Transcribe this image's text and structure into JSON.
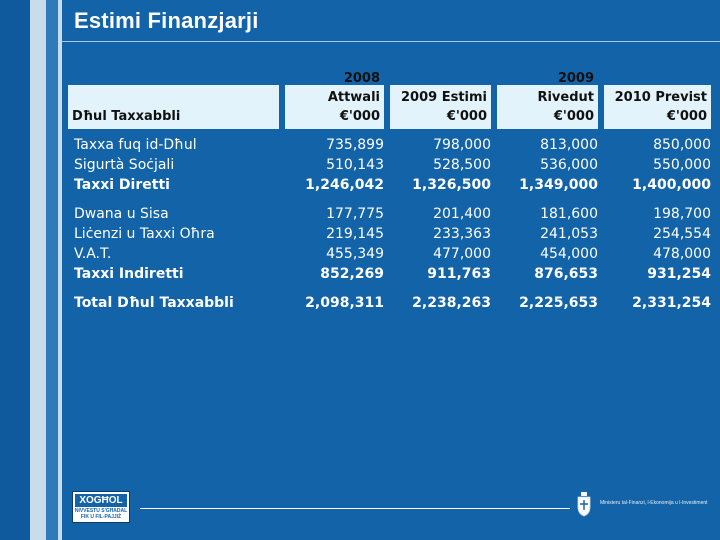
{
  "title": "Estimi Finanzjarji",
  "table": {
    "first_header": "Dħul Taxxabbli",
    "columns": [
      {
        "line1": "2008 Attwali",
        "line2": "€'000"
      },
      {
        "line1": "2009 Estimi",
        "line2": "€'000"
      },
      {
        "line1": "2009 Rivedut",
        "line2": "€'000"
      },
      {
        "line1": "2010 Previst",
        "line2": "€'000"
      }
    ],
    "direct": [
      {
        "label": "Taxxa fuq id-Dħul",
        "values": [
          "735,899",
          "798,000",
          "813,000",
          "850,000"
        ]
      },
      {
        "label": "Sigurtà Soċjali",
        "values": [
          "510,143",
          "528,500",
          "536,000",
          "550,000"
        ]
      },
      {
        "label": "Taxxi Diretti",
        "values": [
          "1,246,042",
          "1,326,500",
          "1,349,000",
          "1,400,000"
        ]
      }
    ],
    "indirect": [
      {
        "label": "Dwana u Sisa",
        "values": [
          "177,775",
          "201,400",
          "181,600",
          "198,700"
        ]
      },
      {
        "label": "Liċenzi u Taxxi Oħra",
        "values": [
          "219,145",
          "233,363",
          "241,053",
          "254,554"
        ]
      },
      {
        "label": "V.A.T.",
        "values": [
          "455,349",
          "477,000",
          "454,000",
          "478,000"
        ]
      },
      {
        "label": "Taxxi Indiretti",
        "values": [
          "852,269",
          "911,763",
          "876,653",
          "931,254"
        ]
      }
    ],
    "total": {
      "label": "Total Dħul Taxxabbli",
      "values": [
        "2,098,311",
        "2,238,263",
        "2,225,653",
        "2,331,254"
      ]
    }
  },
  "footer": {
    "logo_line1": "XOGĦOL",
    "logo_line2": "NIVVESTU S'GĦADAL",
    "logo_line3": "FIK U FIL-PAJJIŻ",
    "ministry": "Ministeru tal-Finanzi, l-Ekonomija u l-Investiment"
  },
  "colors": {
    "background": "#1263a8",
    "header_cell": "#e2f3fc",
    "text": "#ffffff"
  }
}
